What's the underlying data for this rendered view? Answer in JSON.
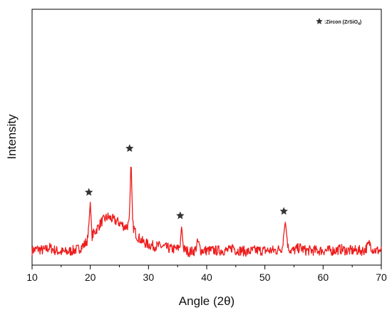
{
  "chart_data": {
    "type": "line",
    "title": "",
    "xlabel": "Angle (2θ)",
    "ylabel": "Intensity",
    "xlim": [
      10,
      70
    ],
    "x_ticks": [
      10,
      20,
      30,
      40,
      50,
      60,
      70
    ],
    "y_ticks_shown": false,
    "grid": false,
    "line_color": "#ee1c1c",
    "marker_color": "#333333",
    "legend": {
      "position": "top-right",
      "marker": "star",
      "label": ":Zircon (ZrSiO",
      "label_sub": "4",
      "label_end": ")"
    },
    "baseline_noise": 0.035,
    "series": [
      {
        "x": [
          10,
          11,
          12,
          13,
          14,
          15,
          16,
          17,
          18,
          19,
          19.6,
          20.0,
          20.3,
          21,
          22,
          23,
          24,
          25,
          26,
          26.7,
          27.0,
          27.3,
          28,
          29,
          30,
          31,
          32,
          33,
          34,
          35,
          35.4,
          35.7,
          36.0,
          37,
          38,
          38.5,
          39,
          40,
          41,
          42,
          43,
          44,
          44.5,
          45,
          46,
          47,
          48,
          49,
          50,
          51,
          52,
          52.5,
          53.0,
          53.5,
          54.0,
          54.5,
          55,
          56,
          57,
          58,
          59,
          60,
          61,
          62,
          63,
          64,
          65,
          66,
          67,
          67.5,
          68,
          68.5,
          69,
          70
        ],
        "y": [
          0.1,
          0.11,
          0.1,
          0.12,
          0.1,
          0.09,
          0.09,
          0.1,
          0.11,
          0.14,
          0.18,
          0.43,
          0.2,
          0.24,
          0.3,
          0.33,
          0.31,
          0.29,
          0.26,
          0.28,
          0.73,
          0.27,
          0.2,
          0.16,
          0.14,
          0.13,
          0.13,
          0.12,
          0.11,
          0.11,
          0.13,
          0.27,
          0.11,
          0.09,
          0.1,
          0.16,
          0.1,
          0.1,
          0.1,
          0.1,
          0.1,
          0.1,
          0.13,
          0.1,
          0.1,
          0.09,
          0.1,
          0.1,
          0.1,
          0.1,
          0.1,
          0.11,
          0.12,
          0.3,
          0.12,
          0.1,
          0.1,
          0.12,
          0.1,
          0.1,
          0.1,
          0.1,
          0.1,
          0.1,
          0.11,
          0.1,
          0.1,
          0.1,
          0.1,
          0.12,
          0.15,
          0.11,
          0.1,
          0.1
        ]
      }
    ],
    "peaks_marked": [
      {
        "x": 20.0,
        "y": 0.43
      },
      {
        "x": 27.0,
        "y": 0.73
      },
      {
        "x": 35.7,
        "y": 0.27
      },
      {
        "x": 53.5,
        "y": 0.3
      }
    ],
    "ylim": [
      0,
      1.75
    ]
  }
}
